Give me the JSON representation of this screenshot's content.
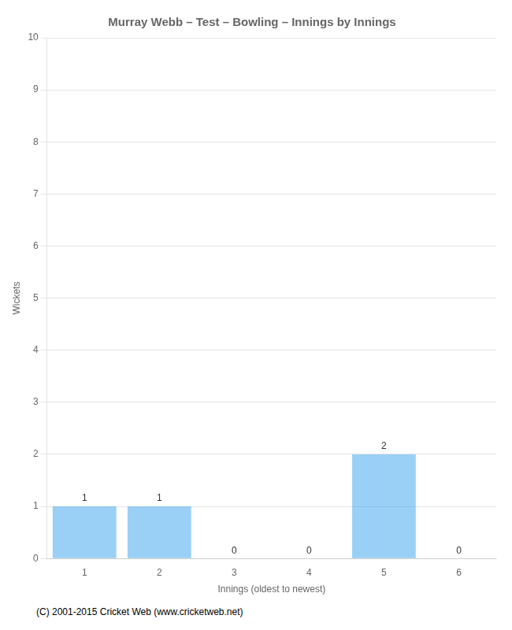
{
  "chart_data": {
    "type": "bar",
    "title": "Murray Webb – Test – Bowling – Innings by Innings",
    "x_label": "Innings (oldest to newest)",
    "y_label": "Wickets",
    "categories": [
      "1",
      "2",
      "3",
      "4",
      "5",
      "6"
    ],
    "values": [
      1,
      1,
      0,
      0,
      2,
      0
    ],
    "ylim": [
      0,
      10
    ],
    "yticks": [
      0,
      1,
      2,
      3,
      4,
      5,
      6,
      7,
      8,
      9,
      10
    ],
    "grid": true,
    "data_labels": true,
    "annotations": [
      "(C) 2001-2015 Cricket Web (www.cricketweb.net)"
    ]
  }
}
